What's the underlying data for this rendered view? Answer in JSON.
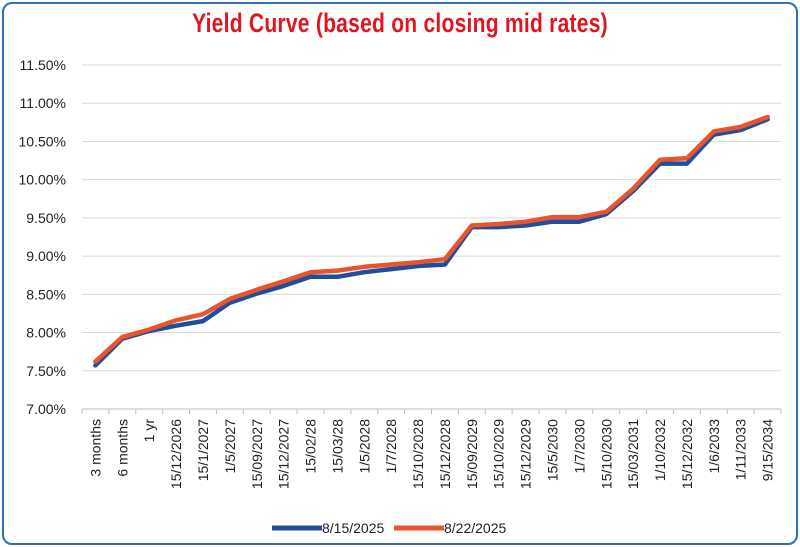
{
  "chart_data": {
    "type": "line",
    "title": "Yield Curve (based on closing mid rates)",
    "xlabel": "",
    "ylabel": "",
    "ylim": [
      7.0,
      11.5
    ],
    "yticks": [
      "7.00%",
      "7.50%",
      "8.00%",
      "8.50%",
      "9.00%",
      "9.50%",
      "10.00%",
      "10.50%",
      "11.00%",
      "11.50%"
    ],
    "grid": true,
    "legend_position": "bottom",
    "categories": [
      "3 months",
      "6 months",
      "1 yr",
      "15/12/2026",
      "15/1/2027",
      "1/5/2027",
      "15/09/2027",
      "15/12/2027",
      "15/02/28",
      "15/03/28",
      "1/5/2028",
      "1/7/2028",
      "15/10/2028",
      "15/12/2028",
      "15/09/2029",
      "15/10/2029",
      "15/12/2029",
      "15/5/2030",
      "1/7/2030",
      "15/10/2030",
      "15/03/2031",
      "1/10/2032",
      "15/12/2032",
      "1/6/2033",
      "1/11/2033",
      "9/15/2034"
    ],
    "series": [
      {
        "name": "8/15/2025",
        "color": "#1f4e9c",
        "values": [
          7.57,
          7.92,
          8.02,
          8.09,
          8.15,
          8.39,
          8.51,
          8.61,
          8.73,
          8.73,
          8.79,
          8.83,
          8.87,
          8.89,
          9.38,
          9.38,
          9.4,
          9.45,
          9.45,
          9.55,
          9.85,
          10.21,
          10.21,
          10.59,
          10.65,
          10.79
        ]
      },
      {
        "name": "8/22/2025",
        "color": "#e8542c",
        "values": [
          7.62,
          7.94,
          8.04,
          8.16,
          8.24,
          8.44,
          8.56,
          8.67,
          8.79,
          8.81,
          8.86,
          8.89,
          8.92,
          8.96,
          9.4,
          9.42,
          9.45,
          9.51,
          9.51,
          9.58,
          9.88,
          10.26,
          10.28,
          10.63,
          10.69,
          10.82
        ]
      }
    ]
  }
}
